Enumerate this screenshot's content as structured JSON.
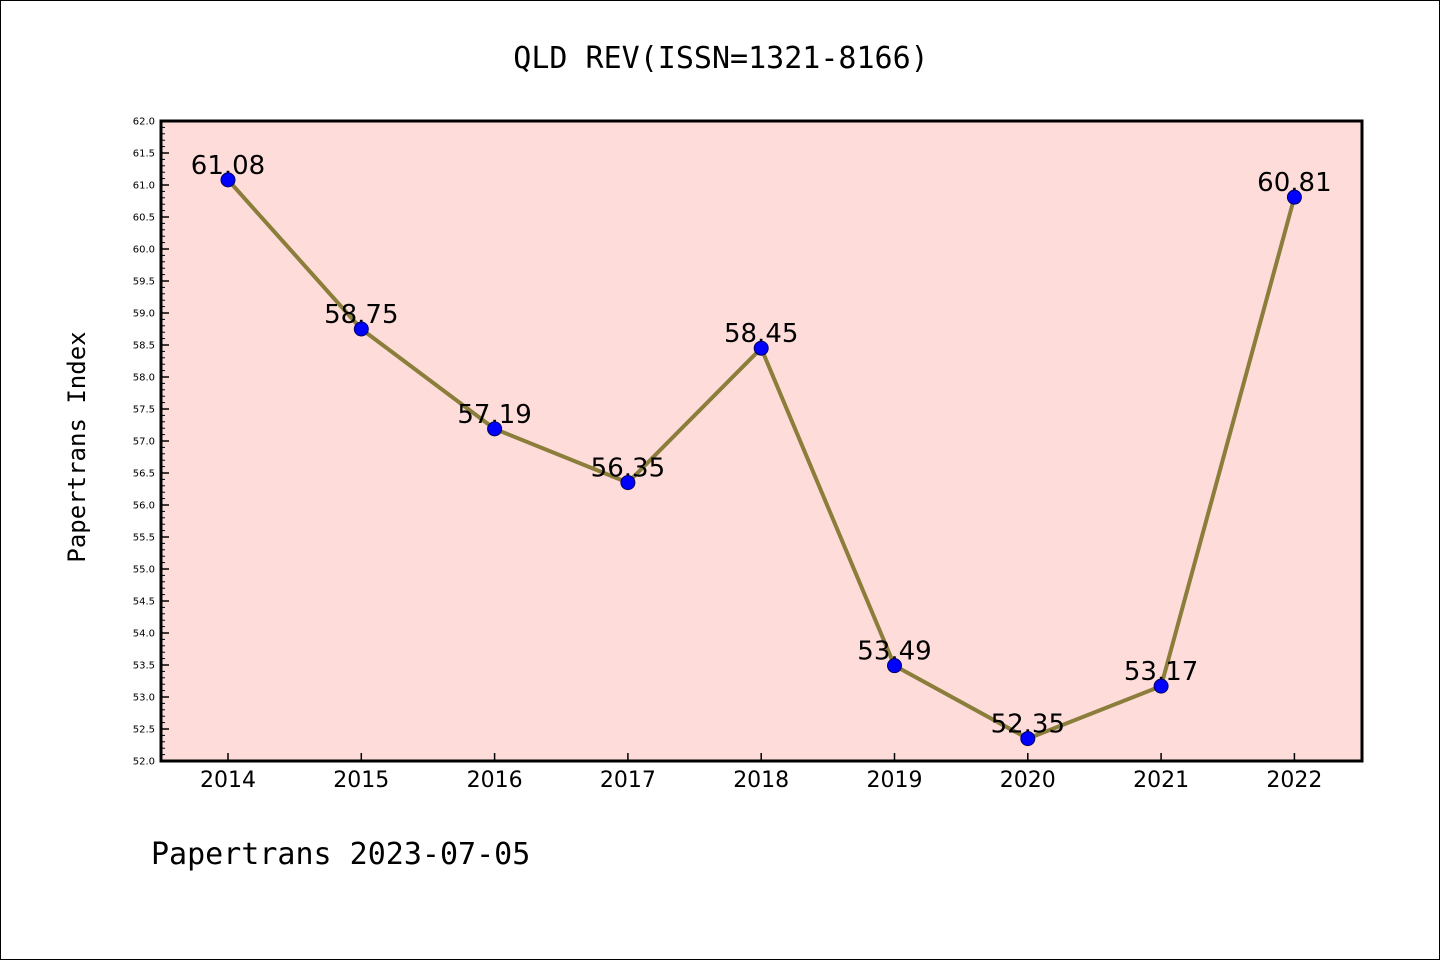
{
  "chart_data": {
    "type": "line",
    "title": "QLD REV(ISSN=1321-8166)",
    "xlabel": "",
    "ylabel": "Papertrans Index",
    "categories": [
      "2014",
      "2015",
      "2016",
      "2017",
      "2018",
      "2019",
      "2020",
      "2021",
      "2022"
    ],
    "series": [
      {
        "values": [
          61.08,
          58.75,
          57.19,
          56.35,
          58.45,
          53.49,
          52.35,
          53.17,
          60.81
        ],
        "labels": [
          "61.08",
          "58.75",
          "57.19",
          "56.35",
          "58.45",
          "53.49",
          "52.35",
          "53.17",
          "60.81"
        ]
      }
    ],
    "ylim": [
      52.0,
      62.0
    ],
    "yticks": [
      "52.0",
      "52.5",
      "53.0",
      "53.5",
      "54.0",
      "54.5",
      "55.0",
      "55.5",
      "56.0",
      "56.5",
      "57.0",
      "57.5",
      "58.0",
      "58.5",
      "59.0",
      "59.5",
      "60.0",
      "60.5",
      "61.0",
      "61.5",
      "62.0"
    ],
    "grid": false,
    "legend": "none",
    "colors": {
      "plot_background": "#fddcda",
      "line": "#8b7d3a",
      "marker": "#0000ff"
    }
  },
  "footer": {
    "text": "Papertrans 2023-07-05"
  }
}
